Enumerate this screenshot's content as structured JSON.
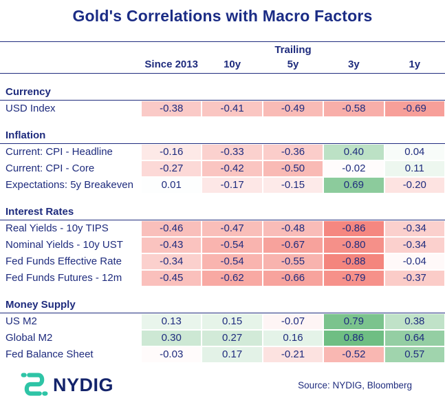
{
  "title": "Gold's Correlations with Macro Factors",
  "header": {
    "group_label": "Trailing"
  },
  "chart_data": {
    "type": "heatmap",
    "title": "Gold's Correlations with Macro Factors",
    "column_group": "Trailing",
    "columns": [
      "Since 2013",
      "10y",
      "5y",
      "3y",
      "1y"
    ],
    "value_range": [
      -1,
      1
    ],
    "colormap": {
      "negative": "#F3746B",
      "zero": "#FFFFFF",
      "positive": "#58B36F"
    },
    "groups": [
      {
        "name": "Currency",
        "rows": [
          {
            "label": "USD Index",
            "values": [
              -0.38,
              -0.41,
              -0.49,
              -0.58,
              -0.69
            ]
          }
        ]
      },
      {
        "name": "Inflation",
        "rows": [
          {
            "label": "Current: CPI - Headline",
            "values": [
              -0.16,
              -0.33,
              -0.36,
              0.4,
              0.04
            ]
          },
          {
            "label": "Current: CPI - Core",
            "values": [
              -0.27,
              -0.42,
              -0.5,
              -0.02,
              0.11
            ]
          },
          {
            "label": "Expectations: 5y Breakeven",
            "values": [
              0.01,
              -0.17,
              -0.15,
              0.69,
              -0.2
            ]
          }
        ]
      },
      {
        "name": "Interest Rates",
        "rows": [
          {
            "label": "Real Yields - 10y TIPS",
            "values": [
              -0.46,
              -0.47,
              -0.48,
              -0.86,
              -0.34
            ]
          },
          {
            "label": "Nominal Yields - 10y UST",
            "values": [
              -0.43,
              -0.54,
              -0.67,
              -0.8,
              -0.34
            ]
          },
          {
            "label": "Fed Funds Effective Rate",
            "values": [
              -0.34,
              -0.54,
              -0.55,
              -0.88,
              -0.04
            ]
          },
          {
            "label": "Fed Funds Futures - 12m",
            "values": [
              -0.45,
              -0.62,
              -0.66,
              -0.79,
              -0.37
            ]
          }
        ]
      },
      {
        "name": "Money Supply",
        "rows": [
          {
            "label": "US M2",
            "values": [
              0.13,
              0.15,
              -0.07,
              0.79,
              0.38
            ]
          },
          {
            "label": "Global M2",
            "values": [
              0.3,
              0.27,
              0.16,
              0.86,
              0.64
            ]
          },
          {
            "label": "Fed Balance Sheet",
            "values": [
              -0.03,
              0.17,
              -0.21,
              -0.52,
              0.57
            ]
          }
        ]
      }
    ]
  },
  "footer": {
    "logo_text": "NYDIG",
    "source": "Source: NYDIG, Bloomberg"
  },
  "colors": {
    "navy": "#1E2B7D",
    "title_navy": "#1B2C85",
    "logo_teal": "#2EC4A6",
    "positive_green": "#58B36F",
    "negative_red": "#F3746B"
  }
}
